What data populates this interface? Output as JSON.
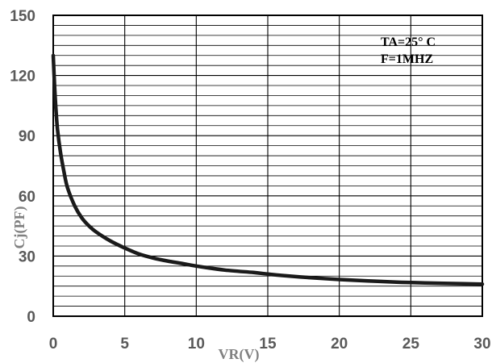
{
  "chart_data": {
    "type": "line",
    "title": "",
    "xlabel": "VR(V)",
    "ylabel": "Cj(PF)",
    "xlim": [
      0,
      30
    ],
    "ylim": [
      0,
      150
    ],
    "x_ticks": [
      0,
      5,
      10,
      15,
      20,
      25,
      30
    ],
    "y_ticks": [
      0,
      30,
      60,
      90,
      120,
      150
    ],
    "x_minor_step": 5,
    "y_minor_step": 5,
    "grid": true,
    "legend": "none",
    "annotations": [
      "TA=25° C",
      "F=1MHZ"
    ],
    "series": [
      {
        "color": "#1a1a1a",
        "x": [
          0.0,
          0.1,
          0.2,
          0.3,
          0.5,
          0.75,
          1.0,
          1.5,
          2.0,
          2.5,
          3.0,
          4.0,
          5.0,
          6.0,
          7.0,
          8.0,
          9.0,
          10.0,
          12.0,
          14.0,
          15.0,
          16.0,
          18.0,
          20.0,
          22.0,
          24.0,
          25.0,
          26.0,
          28.0,
          30.0
        ],
        "y": [
          130,
          114,
          102,
          93,
          82,
          72,
          64,
          55,
          49,
          45,
          42,
          37.5,
          34,
          31,
          29,
          27.5,
          26.3,
          25,
          23,
          21.8,
          21,
          20.3,
          19.2,
          18.3,
          17.6,
          17,
          16.8,
          16.6,
          16.3,
          16
        ]
      }
    ]
  }
}
